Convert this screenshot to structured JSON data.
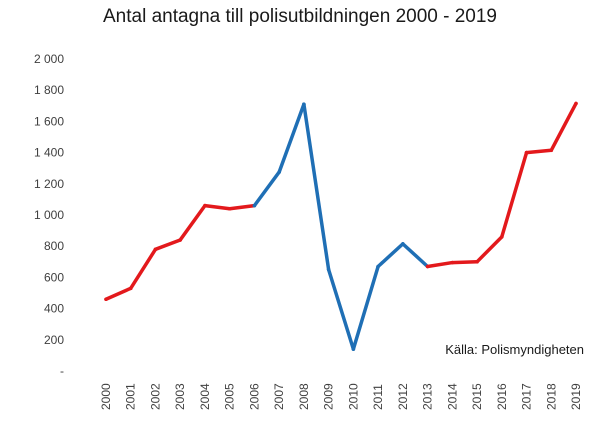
{
  "chart_data": {
    "type": "line",
    "title": "Antal antagna till polisutbildningen 2000 - 2019",
    "source": "Källa: Polismyndigheten",
    "xlabel": "",
    "ylabel": "",
    "ylim": [
      0,
      2000
    ],
    "grid": false,
    "y_ticks": [
      {
        "value": 0,
        "label": "-"
      },
      {
        "value": 200,
        "label": "200"
      },
      {
        "value": 400,
        "label": "400"
      },
      {
        "value": 600,
        "label": "600"
      },
      {
        "value": 800,
        "label": "800"
      },
      {
        "value": 1000,
        "label": "1 000"
      },
      {
        "value": 1200,
        "label": "1 200"
      },
      {
        "value": 1400,
        "label": "1 400"
      },
      {
        "value": 1600,
        "label": "1 600"
      },
      {
        "value": 1800,
        "label": "1 800"
      },
      {
        "value": 2000,
        "label": "2 000"
      }
    ],
    "categories": [
      "2000",
      "2001",
      "2002",
      "2003",
      "2004",
      "2005",
      "2006",
      "2007",
      "2008",
      "2009",
      "2010",
      "2011",
      "2012",
      "2013",
      "2014",
      "2015",
      "2016",
      "2017",
      "2018",
      "2019"
    ],
    "values": [
      460,
      530,
      780,
      840,
      1060,
      1040,
      1060,
      1275,
      1710,
      650,
      140,
      670,
      815,
      670,
      695,
      700,
      860,
      1400,
      1415,
      1715
    ],
    "segment_colors": [
      "#e3191c",
      "#e3191c",
      "#e3191c",
      "#e3191c",
      "#e3191c",
      "#e3191c",
      "#1f6fb5",
      "#1f6fb5",
      "#1f6fb5",
      "#1f6fb5",
      "#1f6fb5",
      "#1f6fb5",
      "#1f6fb5",
      "#e3191c",
      "#e3191c",
      "#e3191c",
      "#e3191c",
      "#e3191c",
      "#e3191c"
    ]
  }
}
